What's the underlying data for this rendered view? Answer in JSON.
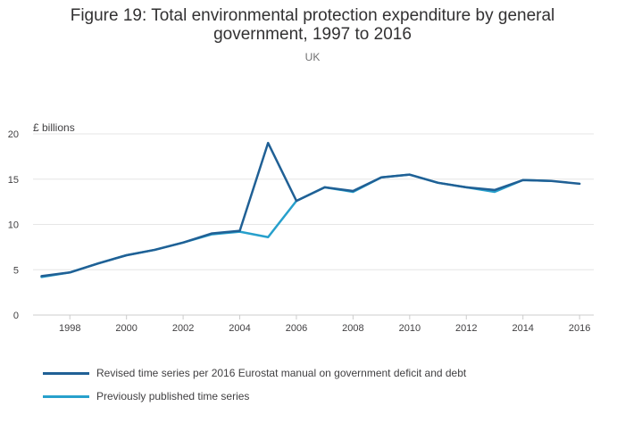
{
  "chart_data": {
    "type": "line",
    "title": "Figure 19: Total environmental protection expenditure by general government, 1997 to 2016",
    "subtitle": "UK",
    "ylabel": "£ billions",
    "xlabel": "",
    "x": [
      1997,
      1998,
      1999,
      2000,
      2001,
      2002,
      2003,
      2004,
      2005,
      2006,
      2007,
      2008,
      2009,
      2010,
      2011,
      2012,
      2013,
      2014,
      2015,
      2016
    ],
    "xlim": [
      1996.7,
      2016.5
    ],
    "ylim": [
      0,
      20
    ],
    "x_ticks": [
      1998,
      2000,
      2002,
      2004,
      2006,
      2008,
      2010,
      2012,
      2014,
      2016
    ],
    "y_ticks": [
      0,
      5,
      10,
      15,
      20
    ],
    "grid": true,
    "legend_position": "bottom-left",
    "series": [
      {
        "name": "Revised time series per 2016 Eurostat manual on government deficit and debt",
        "color": "#206095",
        "values": [
          4.3,
          4.7,
          5.7,
          6.6,
          7.2,
          8.0,
          9.0,
          9.3,
          19.0,
          12.6,
          14.1,
          13.7,
          15.2,
          15.5,
          14.6,
          14.1,
          13.8,
          14.9,
          14.8,
          14.5
        ]
      },
      {
        "name": "Previously published time series",
        "color": "#27a0cc",
        "values": [
          4.2,
          4.7,
          5.7,
          6.6,
          7.2,
          8.0,
          8.9,
          9.2,
          8.6,
          12.6,
          14.1,
          13.6,
          15.2,
          15.5,
          14.6,
          14.1,
          13.6,
          14.9,
          14.8,
          null
        ]
      }
    ]
  }
}
